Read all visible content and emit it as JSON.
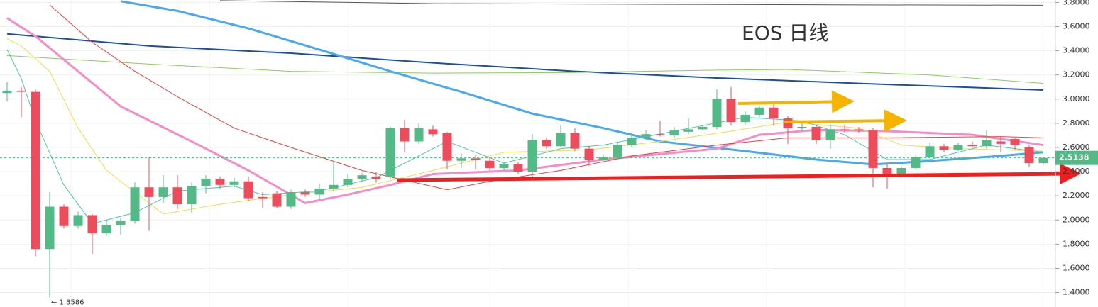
{
  "chart_data": {
    "type": "candlestick",
    "title": "EOS 日线",
    "title_color": "#e8261c",
    "up_color": "#53b987",
    "down_color": "#eb4d5c",
    "grid": true,
    "ylim": [
      1.28,
      3.82
    ],
    "yticks": [
      {
        "value": 1.4,
        "label": "1.4000"
      },
      {
        "value": 1.6,
        "label": "1.6000"
      },
      {
        "value": 1.8,
        "label": "1.8000"
      },
      {
        "value": 2.0,
        "label": "2.0000"
      },
      {
        "value": 2.2,
        "label": "2.2000"
      },
      {
        "value": 2.4,
        "label": "2.4000"
      },
      {
        "value": 2.6,
        "label": "2.6000"
      },
      {
        "value": 2.8,
        "label": "2.8000"
      },
      {
        "value": 3.0,
        "label": "3.0000"
      },
      {
        "value": 3.2,
        "label": "3.2000"
      },
      {
        "value": 3.4,
        "label": "3.4000"
      },
      {
        "value": 3.6,
        "label": "3.6000"
      },
      {
        "value": 3.8,
        "label": "3.8000"
      }
    ],
    "open": [
      3.05,
      3.07,
      3.06,
      1.76,
      2.11,
      1.95,
      2.04,
      1.89,
      1.96,
      1.99,
      2.27,
      2.19,
      2.27,
      2.13,
      2.28,
      2.34,
      2.29,
      2.32,
      2.19,
      2.22,
      2.11,
      2.23,
      2.21,
      2.26,
      2.29,
      2.34,
      2.36,
      2.36,
      2.76,
      2.65,
      2.75,
      2.72,
      2.49,
      2.51,
      2.49,
      2.43,
      2.46,
      2.4,
      2.66,
      2.61,
      2.72,
      2.59,
      2.5,
      2.52,
      2.62,
      2.68,
      2.71,
      2.7,
      2.73,
      2.75,
      2.77,
      3.0,
      2.81,
      2.87,
      2.93,
      2.84,
      2.76,
      2.77,
      2.66,
      2.75,
      2.75,
      2.74,
      2.43,
      2.38,
      2.43,
      2.52,
      2.61,
      2.58,
      2.62,
      2.61,
      2.65,
      2.67,
      2.6,
      2.47
    ],
    "high": [
      3.14,
      3.1,
      3.08,
      2.23,
      2.13,
      2.07,
      2.05,
      2.0,
      2.02,
      2.31,
      2.52,
      2.37,
      2.37,
      2.31,
      2.37,
      2.36,
      2.35,
      2.36,
      2.23,
      2.24,
      2.25,
      2.25,
      2.3,
      2.49,
      2.38,
      2.39,
      2.4,
      2.77,
      2.83,
      2.8,
      2.78,
      2.73,
      2.55,
      2.54,
      2.52,
      2.48,
      2.48,
      2.71,
      2.68,
      2.78,
      2.76,
      2.61,
      2.54,
      2.65,
      2.72,
      2.74,
      2.82,
      2.77,
      2.84,
      2.78,
      3.08,
      3.1,
      2.9,
      2.94,
      2.97,
      2.86,
      2.8,
      2.79,
      2.79,
      2.79,
      2.77,
      2.76,
      2.46,
      2.44,
      2.53,
      2.64,
      2.63,
      2.64,
      2.65,
      2.74,
      2.69,
      2.68,
      2.62,
      2.52
    ],
    "low": [
      2.98,
      2.85,
      1.7,
      1.3586,
      1.93,
      1.93,
      1.72,
      1.87,
      1.88,
      1.97,
      1.91,
      2.14,
      2.09,
      2.06,
      2.22,
      2.26,
      2.27,
      2.16,
      2.1,
      2.1,
      2.09,
      2.19,
      2.17,
      2.24,
      2.27,
      2.32,
      2.31,
      2.34,
      2.56,
      2.63,
      2.69,
      2.42,
      2.43,
      2.42,
      2.41,
      2.41,
      2.38,
      2.35,
      2.59,
      2.6,
      2.57,
      2.45,
      2.49,
      2.5,
      2.6,
      2.66,
      2.69,
      2.68,
      2.71,
      2.74,
      2.75,
      2.78,
      2.79,
      2.85,
      2.78,
      2.63,
      2.74,
      2.63,
      2.59,
      2.72,
      2.72,
      2.27,
      2.26,
      2.35,
      2.42,
      2.51,
      2.56,
      2.57,
      2.6,
      2.59,
      2.56,
      2.58,
      2.44,
      2.46
    ],
    "close": [
      3.07,
      3.06,
      1.76,
      2.11,
      1.95,
      2.04,
      1.89,
      1.96,
      1.99,
      2.27,
      2.19,
      2.27,
      2.13,
      2.28,
      2.34,
      2.29,
      2.32,
      2.18,
      2.18,
      2.11,
      2.23,
      2.21,
      2.26,
      2.29,
      2.34,
      2.37,
      2.34,
      2.76,
      2.65,
      2.76,
      2.71,
      2.49,
      2.51,
      2.5,
      2.43,
      2.46,
      2.4,
      2.66,
      2.61,
      2.72,
      2.59,
      2.5,
      2.52,
      2.62,
      2.68,
      2.71,
      2.7,
      2.74,
      2.75,
      2.77,
      3.0,
      2.81,
      2.87,
      2.93,
      2.84,
      2.76,
      2.77,
      2.66,
      2.75,
      2.74,
      2.74,
      2.43,
      2.37,
      2.43,
      2.52,
      2.61,
      2.58,
      2.62,
      2.61,
      2.66,
      2.63,
      2.62,
      2.47,
      2.5138
    ],
    "lines": [
      {
        "color": "#555555",
        "width": 1,
        "x": [
          15,
          30,
          45,
          60,
          73
        ],
        "values": [
          3.815,
          3.79,
          3.785,
          3.78,
          3.777
        ]
      },
      {
        "color": "#1a4fa0",
        "width": 2,
        "x": [
          0,
          10,
          20,
          30,
          40,
          50,
          60,
          73
        ],
        "values": [
          3.54,
          3.44,
          3.38,
          3.3,
          3.23,
          3.175,
          3.13,
          3.075
        ]
      },
      {
        "color": "#8ccc5a",
        "width": 1,
        "x": [
          0,
          10,
          20,
          30,
          40,
          50,
          55,
          65,
          73
        ],
        "values": [
          3.36,
          3.29,
          3.23,
          3.215,
          3.22,
          3.24,
          3.245,
          3.2,
          3.13
        ]
      },
      {
        "color": "#4aa8f0",
        "width": 3,
        "x": [
          8,
          12,
          17,
          22,
          27,
          32,
          37,
          42,
          46,
          52,
          57,
          61,
          64,
          70,
          73
        ],
        "values": [
          3.81,
          3.73,
          3.585,
          3.41,
          3.23,
          3.06,
          2.88,
          2.76,
          2.65,
          2.57,
          2.5,
          2.46,
          2.48,
          2.53,
          2.56
        ]
      },
      {
        "color": "#f48cc8",
        "width": 3,
        "x": [
          0,
          2,
          5,
          8,
          13,
          17,
          21,
          24,
          27,
          30,
          36,
          42,
          50,
          53,
          57,
          62,
          68,
          73
        ],
        "values": [
          3.67,
          3.52,
          3.23,
          2.94,
          2.65,
          2.41,
          2.14,
          2.21,
          2.29,
          2.38,
          2.41,
          2.5,
          2.59,
          2.705,
          2.745,
          2.735,
          2.705,
          2.62
        ]
      },
      {
        "color": "#e8413e",
        "width": 1,
        "x": [
          3,
          6,
          9,
          12,
          16,
          20,
          25,
          31,
          34,
          39,
          44,
          50,
          55,
          62,
          70,
          73
        ],
        "values": [
          3.78,
          3.47,
          3.23,
          3.02,
          2.76,
          2.6,
          2.41,
          2.25,
          2.32,
          2.41,
          2.53,
          2.62,
          2.68,
          2.68,
          2.69,
          2.68
        ]
      },
      {
        "color": "#f7d94c",
        "width": 1,
        "x": [
          0,
          1,
          3,
          5,
          7,
          11,
          15,
          20,
          25,
          30,
          35,
          41,
          46,
          51,
          55,
          60,
          63,
          67,
          73
        ],
        "values": [
          3.5,
          3.44,
          3.23,
          2.76,
          2.41,
          2.05,
          2.13,
          2.21,
          2.27,
          2.41,
          2.56,
          2.58,
          2.65,
          2.735,
          2.81,
          2.76,
          2.62,
          2.59,
          2.57
        ]
      },
      {
        "color": "#4fc6a8",
        "width": 1,
        "x": [
          0,
          1,
          2,
          4,
          6,
          9,
          12,
          16,
          18,
          22,
          26,
          31,
          35,
          39,
          42,
          47,
          52,
          56,
          59,
          62,
          65,
          69,
          73
        ],
        "values": [
          3.41,
          3.17,
          2.82,
          2.29,
          1.97,
          2.06,
          2.24,
          2.28,
          2.21,
          2.24,
          2.35,
          2.65,
          2.47,
          2.59,
          2.62,
          2.735,
          2.85,
          2.82,
          2.705,
          2.5,
          2.5,
          2.62,
          2.56
        ]
      }
    ],
    "last_price": 2.5138,
    "last_price_color": "#53b987",
    "annotations": [
      {
        "x": 3,
        "y": 1.3586,
        "text": "← 1.3586"
      }
    ]
  }
}
